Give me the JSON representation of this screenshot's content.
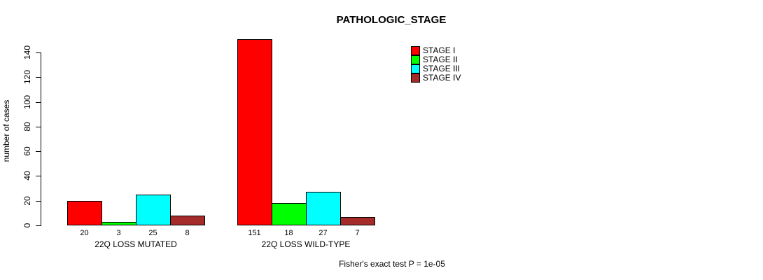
{
  "chart_data": {
    "type": "bar",
    "title": "PATHOLOGIC_STAGE",
    "ylabel": "number of cases",
    "xlabel": "",
    "ylim": [
      0,
      140
    ],
    "yticks": [
      0,
      20,
      40,
      60,
      80,
      100,
      120,
      140
    ],
    "grid": false,
    "legend_position": "top-right",
    "categories": [
      "22Q LOSS MUTATED",
      "22Q LOSS WILD-TYPE"
    ],
    "series": [
      {
        "name": "STAGE I",
        "color": "#ff0000",
        "values": [
          20,
          151
        ]
      },
      {
        "name": "STAGE II",
        "color": "#00ff00",
        "values": [
          3,
          18
        ]
      },
      {
        "name": "STAGE III",
        "color": "#00ffff",
        "values": [
          25,
          27
        ]
      },
      {
        "name": "STAGE IV",
        "color": "#a52a2a",
        "values": [
          8,
          7
        ]
      }
    ],
    "bar_value_labels_shown": true,
    "bar_border_color": "#000000",
    "background_color": "#ffffff",
    "annotation": "Fisher's exact test P = 1e-05"
  }
}
